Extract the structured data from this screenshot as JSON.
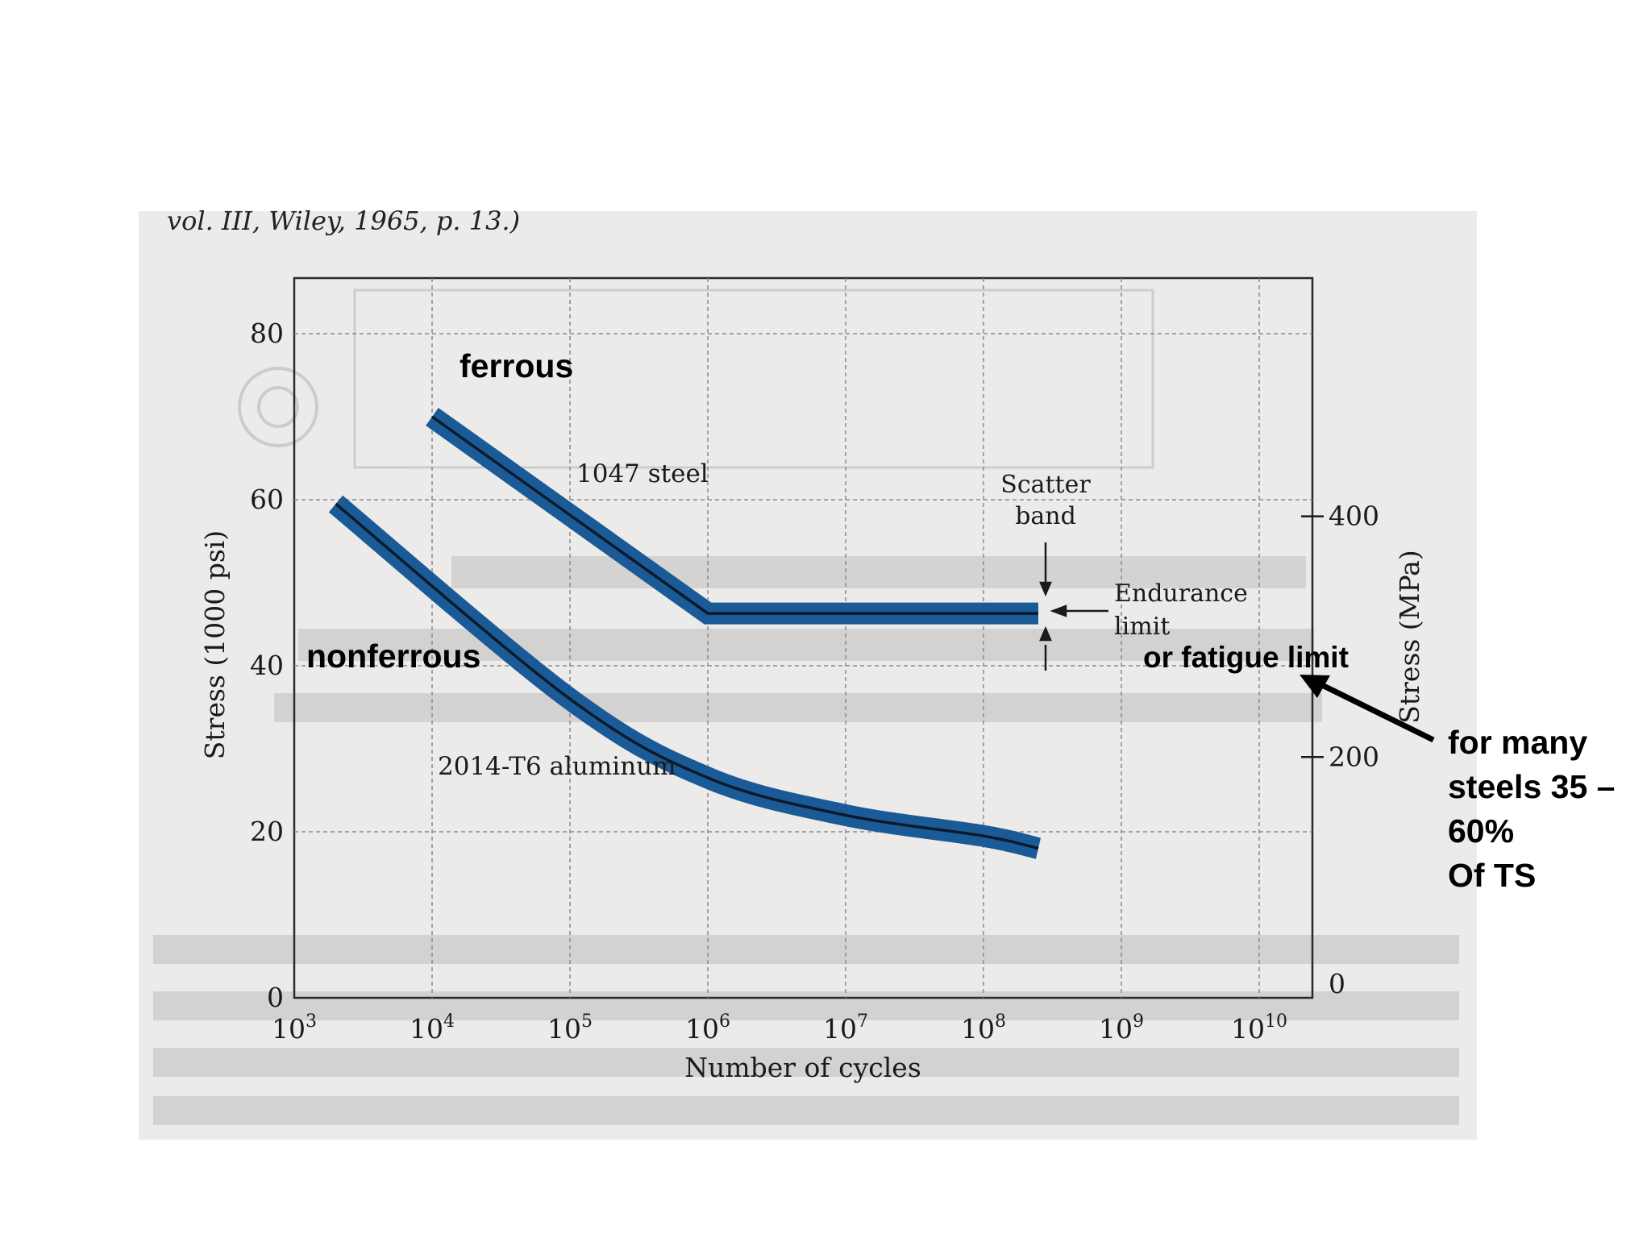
{
  "caption_top": "vol. III, Wiley, 1965, p. 13.)",
  "chart_data": {
    "type": "line",
    "xlabel": "Number of cycles",
    "ylabel_left": "Stress (1000 psi)",
    "ylabel_right": "Stress (MPa)",
    "x_scale": "log",
    "xlim": [
      1000,
      10000000000
    ],
    "ylim": [
      0,
      85
    ],
    "grid": true,
    "x_ticks": [
      {
        "base": "10",
        "exp": "3",
        "value": 1000
      },
      {
        "base": "10",
        "exp": "4",
        "value": 10000
      },
      {
        "base": "10",
        "exp": "5",
        "value": 100000
      },
      {
        "base": "10",
        "exp": "6",
        "value": 1000000
      },
      {
        "base": "10",
        "exp": "7",
        "value": 10000000
      },
      {
        "base": "10",
        "exp": "8",
        "value": 100000000
      },
      {
        "base": "10",
        "exp": "9",
        "value": 1000000000
      },
      {
        "base": "10",
        "exp": "10",
        "value": 10000000000
      }
    ],
    "y_ticks_left": [
      "0",
      "20",
      "40",
      "60",
      "80"
    ],
    "y_ticks_right": [
      {
        "label": "0",
        "value": 0
      },
      {
        "label": "200",
        "value": 29
      },
      {
        "label": "400",
        "value": 58
      }
    ],
    "series": [
      {
        "name": "1047 steel",
        "x": [
          10000,
          1000000,
          10000000,
          100000000,
          250000000
        ],
        "y": [
          70,
          46.3,
          46.3,
          46.3,
          46.3
        ]
      },
      {
        "name": "2014-T6 aluminum",
        "x": [
          2000,
          100000,
          1000000,
          10000000,
          100000000,
          250000000
        ],
        "y": [
          59.5,
          36,
          26.5,
          22,
          19.5,
          18
        ]
      }
    ],
    "annotations": {
      "scatter_band": "Scatter\nband",
      "endurance_limit": "Endurance\nlimit"
    }
  },
  "overlay_labels": {
    "ferrous": "ferrous",
    "nonferrous": "nonferrous",
    "fatigue_limit": "or fatigue limit",
    "note": "for many\nsteels 35 –\n60%\nOf TS"
  },
  "colors": {
    "band": "#1a5a96",
    "center_line": "#0b1a2a",
    "grid": "#8a8a8a",
    "page_bg": "#ecebea"
  }
}
